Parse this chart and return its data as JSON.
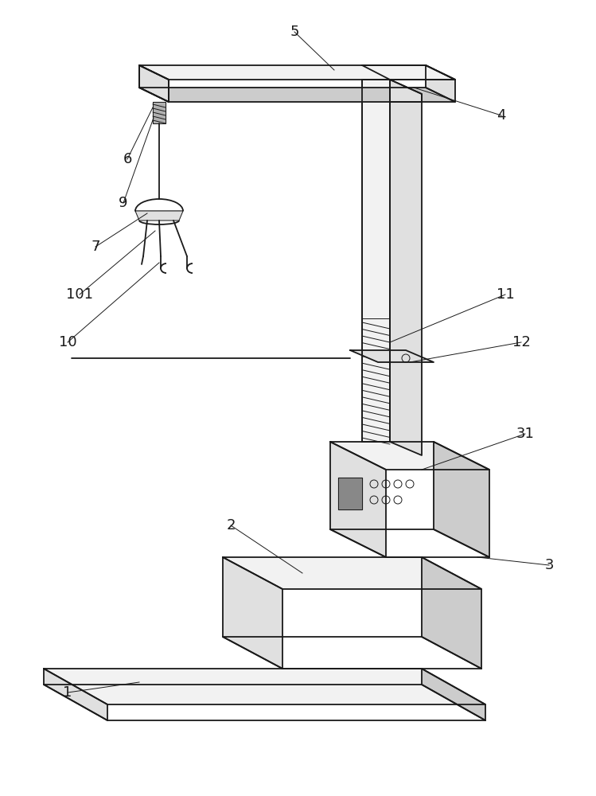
{
  "bg_color": "#ffffff",
  "line_color": "#1a1a1a",
  "lw": 1.3,
  "tlw": 0.7,
  "fill_light": "#f2f2f2",
  "fill_mid": "#e0e0e0",
  "fill_dark": "#cccccc",
  "fill_side": "#d8d8d8"
}
